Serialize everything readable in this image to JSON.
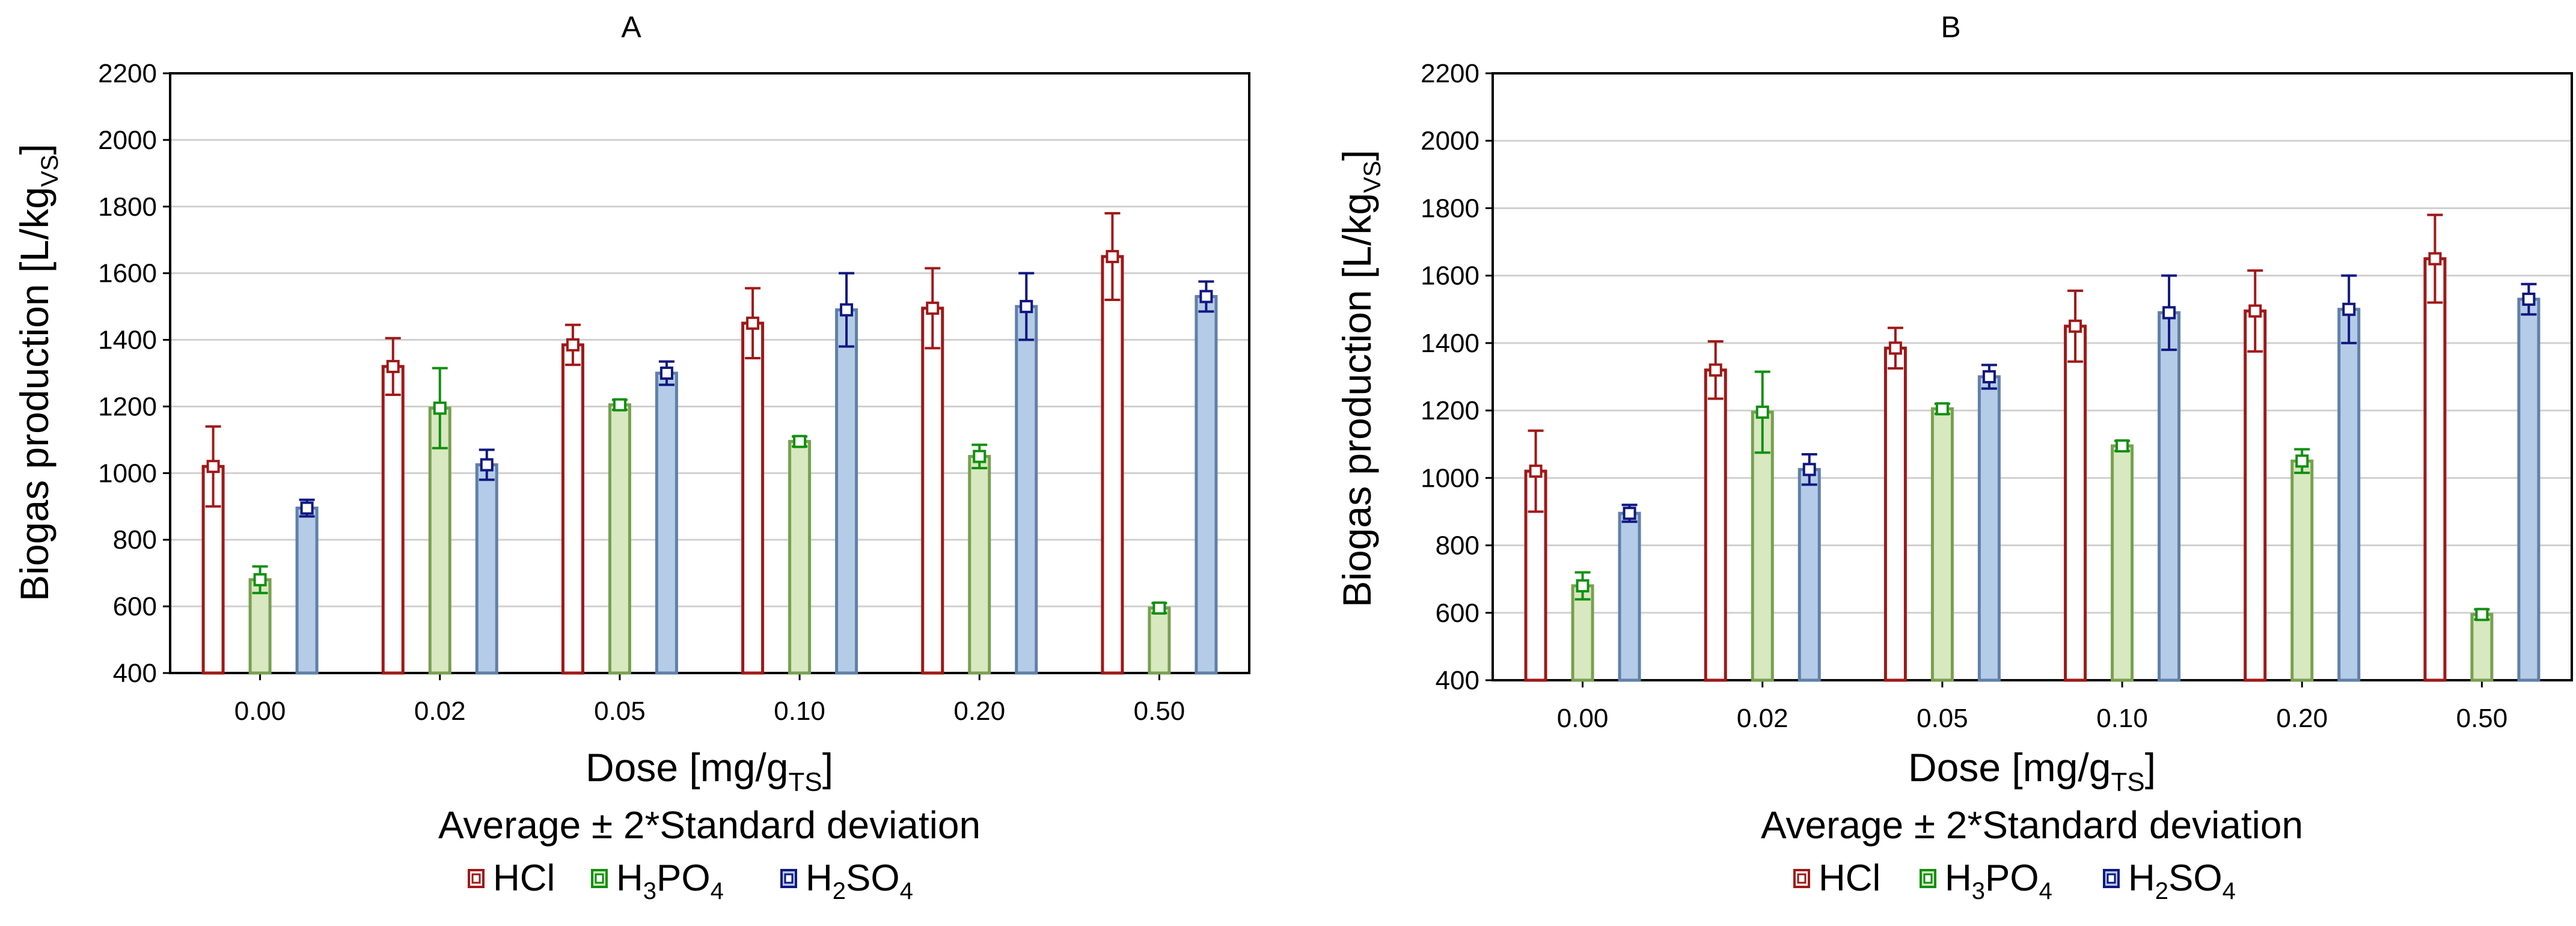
{
  "chart_data": [
    {
      "type": "bar",
      "title": "A",
      "xlabel_main": "Dose [mg/g",
      "xlabel_sub": "TS",
      "xlabel_end": "]",
      "ylabel_main": "Biogas production [L/kg",
      "ylabel_sub": "VS",
      "ylabel_end": "]",
      "ylim": [
        400,
        2200
      ],
      "yticks": [
        "400",
        "600",
        "800",
        "1000",
        "1200",
        "1400",
        "1600",
        "1800",
        "2000",
        "2200"
      ],
      "categories": [
        "0.00",
        "0.02",
        "0.05",
        "0.10",
        "0.20",
        "0.50"
      ],
      "grid": true,
      "subtitle": "Average ± 2*Standard deviation",
      "series": [
        {
          "name": "HCl",
          "values": [
            1020,
            1320,
            1385,
            1450,
            1495,
            1650
          ],
          "err": [
            120,
            85,
            60,
            105,
            120,
            130
          ]
        },
        {
          "name": "H3PO4",
          "values": [
            680,
            1195,
            1205,
            1095,
            1050,
            595
          ],
          "err": [
            40,
            120,
            15,
            15,
            35,
            15
          ]
        },
        {
          "name": "H2SO4",
          "values": [
            895,
            1025,
            1300,
            1490,
            1500,
            1530
          ],
          "err": [
            25,
            45,
            35,
            110,
            100,
            45
          ]
        }
      ]
    },
    {
      "type": "bar",
      "title": "B",
      "xlabel_main": "Dose [mg/g",
      "xlabel_sub": "TS",
      "xlabel_end": "]",
      "ylabel_main": "Biogas production [L/kg",
      "ylabel_sub": "VS",
      "ylabel_end": "]",
      "ylim": [
        400,
        2200
      ],
      "yticks": [
        "400",
        "600",
        "800",
        "1000",
        "1200",
        "1400",
        "1600",
        "1800",
        "2000",
        "2200"
      ],
      "categories": [
        "0.00",
        "0.02",
        "0.05",
        "0.10",
        "0.20",
        "0.50"
      ],
      "grid": true,
      "subtitle": "Average ± 2*Standard deviation",
      "series": [
        {
          "name": "HCl",
          "values": [
            1020,
            1320,
            1385,
            1450,
            1495,
            1650
          ],
          "err": [
            120,
            85,
            60,
            105,
            120,
            130
          ]
        },
        {
          "name": "H3PO4",
          "values": [
            680,
            1195,
            1205,
            1095,
            1050,
            595
          ],
          "err": [
            40,
            120,
            15,
            15,
            35,
            15
          ]
        },
        {
          "name": "H2SO4",
          "values": [
            895,
            1025,
            1300,
            1490,
            1500,
            1530
          ],
          "err": [
            25,
            45,
            35,
            110,
            100,
            45
          ]
        }
      ]
    }
  ],
  "legend": {
    "items": [
      {
        "main": "HCl",
        "sub1": "",
        "mid": "",
        "sub2": ""
      },
      {
        "main": "H",
        "sub1": "3",
        "mid": "PO",
        "sub2": "4"
      },
      {
        "main": "H",
        "sub1": "2",
        "mid": "SO",
        "sub2": "4"
      }
    ]
  },
  "colors": {
    "series": [
      {
        "fill": "#ffffff",
        "stroke": "#a01818",
        "err": "#a01818"
      },
      {
        "fill": "#d8e8c0",
        "stroke": "#78a050",
        "err": "#109010"
      },
      {
        "fill": "#b4cce8",
        "stroke": "#6080a8",
        "err": "#101880"
      }
    ],
    "grid": "#d0d0d0",
    "axis": "#000000"
  }
}
